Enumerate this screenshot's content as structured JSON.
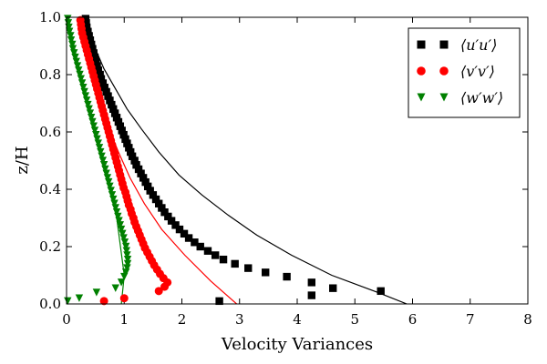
{
  "chart_data": {
    "type": "scatter",
    "xlabel": "Velocity Variances",
    "ylabel": "z/H",
    "xlim": [
      0,
      8
    ],
    "ylim": [
      0,
      1
    ],
    "x_ticks": [
      "0",
      "1",
      "2",
      "3",
      "4",
      "5",
      "6",
      "7",
      "8"
    ],
    "y_ticks": [
      "0.0",
      "0.2",
      "0.4",
      "0.6",
      "0.8",
      "1.0"
    ],
    "grid": false,
    "legend_position": "top-right",
    "series": [
      {
        "name": "⟨u′u′⟩",
        "color": "#000000",
        "marker": "square",
        "points": [
          [
            2.65,
            0.01
          ],
          [
            4.25,
            0.03
          ],
          [
            5.45,
            0.045
          ],
          [
            4.62,
            0.055
          ],
          [
            4.25,
            0.075
          ],
          [
            3.82,
            0.095
          ],
          [
            3.45,
            0.11
          ],
          [
            3.15,
            0.125
          ],
          [
            2.92,
            0.14
          ],
          [
            2.72,
            0.155
          ],
          [
            2.58,
            0.17
          ],
          [
            2.45,
            0.185
          ],
          [
            2.32,
            0.2
          ],
          [
            2.22,
            0.215
          ],
          [
            2.12,
            0.23
          ],
          [
            2.04,
            0.245
          ],
          [
            1.96,
            0.26
          ],
          [
            1.89,
            0.275
          ],
          [
            1.82,
            0.29
          ],
          [
            1.76,
            0.305
          ],
          [
            1.7,
            0.32
          ],
          [
            1.65,
            0.335
          ],
          [
            1.6,
            0.35
          ],
          [
            1.55,
            0.365
          ],
          [
            1.5,
            0.38
          ],
          [
            1.45,
            0.395
          ],
          [
            1.41,
            0.41
          ],
          [
            1.37,
            0.425
          ],
          [
            1.33,
            0.44
          ],
          [
            1.29,
            0.455
          ],
          [
            1.25,
            0.47
          ],
          [
            1.21,
            0.485
          ],
          [
            1.18,
            0.5
          ],
          [
            1.14,
            0.515
          ],
          [
            1.11,
            0.53
          ],
          [
            1.08,
            0.545
          ],
          [
            1.05,
            0.56
          ],
          [
            1.02,
            0.575
          ],
          [
            0.99,
            0.59
          ],
          [
            0.96,
            0.605
          ],
          [
            0.93,
            0.62
          ],
          [
            0.9,
            0.635
          ],
          [
            0.87,
            0.65
          ],
          [
            0.84,
            0.665
          ],
          [
            0.81,
            0.68
          ],
          [
            0.78,
            0.695
          ],
          [
            0.75,
            0.71
          ],
          [
            0.72,
            0.725
          ],
          [
            0.69,
            0.74
          ],
          [
            0.66,
            0.755
          ],
          [
            0.63,
            0.77
          ],
          [
            0.6,
            0.785
          ],
          [
            0.58,
            0.8
          ],
          [
            0.55,
            0.815
          ],
          [
            0.53,
            0.83
          ],
          [
            0.51,
            0.845
          ],
          [
            0.49,
            0.86
          ],
          [
            0.47,
            0.875
          ],
          [
            0.45,
            0.89
          ],
          [
            0.43,
            0.905
          ],
          [
            0.41,
            0.92
          ],
          [
            0.39,
            0.935
          ],
          [
            0.37,
            0.95
          ],
          [
            0.35,
            0.965
          ],
          [
            0.34,
            0.98
          ],
          [
            0.33,
            0.995
          ]
        ],
        "fit_curve": [
          [
            5.9,
            0.0
          ],
          [
            5.4,
            0.04
          ],
          [
            4.6,
            0.1
          ],
          [
            3.9,
            0.17
          ],
          [
            3.3,
            0.24
          ],
          [
            2.8,
            0.31
          ],
          [
            2.35,
            0.38
          ],
          [
            1.95,
            0.45
          ],
          [
            1.6,
            0.53
          ],
          [
            1.3,
            0.61
          ],
          [
            1.05,
            0.68
          ],
          [
            0.85,
            0.75
          ],
          [
            0.65,
            0.82
          ],
          [
            0.5,
            0.89
          ],
          [
            0.38,
            0.95
          ],
          [
            0.3,
            1.0
          ]
        ]
      },
      {
        "name": "⟨v′v′⟩",
        "color": "#ff0000",
        "marker": "circle",
        "points": [
          [
            0.65,
            0.01
          ],
          [
            1.0,
            0.02
          ],
          [
            1.6,
            0.045
          ],
          [
            1.7,
            0.06
          ],
          [
            1.75,
            0.075
          ],
          [
            1.68,
            0.09
          ],
          [
            1.62,
            0.105
          ],
          [
            1.57,
            0.12
          ],
          [
            1.52,
            0.135
          ],
          [
            1.48,
            0.15
          ],
          [
            1.44,
            0.165
          ],
          [
            1.4,
            0.18
          ],
          [
            1.36,
            0.195
          ],
          [
            1.33,
            0.21
          ],
          [
            1.3,
            0.225
          ],
          [
            1.27,
            0.24
          ],
          [
            1.24,
            0.255
          ],
          [
            1.21,
            0.27
          ],
          [
            1.18,
            0.285
          ],
          [
            1.16,
            0.3
          ],
          [
            1.13,
            0.315
          ],
          [
            1.11,
            0.33
          ],
          [
            1.08,
            0.345
          ],
          [
            1.06,
            0.36
          ],
          [
            1.04,
            0.375
          ],
          [
            1.02,
            0.39
          ],
          [
            0.99,
            0.405
          ],
          [
            0.97,
            0.42
          ],
          [
            0.95,
            0.435
          ],
          [
            0.93,
            0.45
          ],
          [
            0.91,
            0.465
          ],
          [
            0.89,
            0.48
          ],
          [
            0.87,
            0.495
          ],
          [
            0.85,
            0.51
          ],
          [
            0.83,
            0.525
          ],
          [
            0.81,
            0.54
          ],
          [
            0.79,
            0.555
          ],
          [
            0.77,
            0.57
          ],
          [
            0.75,
            0.585
          ],
          [
            0.73,
            0.6
          ],
          [
            0.71,
            0.615
          ],
          [
            0.69,
            0.63
          ],
          [
            0.67,
            0.645
          ],
          [
            0.65,
            0.66
          ],
          [
            0.63,
            0.675
          ],
          [
            0.61,
            0.69
          ],
          [
            0.59,
            0.705
          ],
          [
            0.57,
            0.72
          ],
          [
            0.55,
            0.735
          ],
          [
            0.53,
            0.75
          ],
          [
            0.51,
            0.765
          ],
          [
            0.49,
            0.78
          ],
          [
            0.47,
            0.795
          ],
          [
            0.45,
            0.81
          ],
          [
            0.43,
            0.825
          ],
          [
            0.41,
            0.84
          ],
          [
            0.39,
            0.855
          ],
          [
            0.37,
            0.87
          ],
          [
            0.35,
            0.885
          ],
          [
            0.33,
            0.9
          ],
          [
            0.31,
            0.915
          ],
          [
            0.29,
            0.93
          ],
          [
            0.27,
            0.945
          ],
          [
            0.26,
            0.96
          ],
          [
            0.25,
            0.975
          ],
          [
            0.24,
            0.99
          ]
        ],
        "fit_curve": [
          [
            2.95,
            0.0
          ],
          [
            2.5,
            0.08
          ],
          [
            2.05,
            0.17
          ],
          [
            1.65,
            0.26
          ],
          [
            1.35,
            0.35
          ],
          [
            1.1,
            0.44
          ],
          [
            0.9,
            0.53
          ],
          [
            0.72,
            0.62
          ],
          [
            0.57,
            0.71
          ],
          [
            0.44,
            0.8
          ],
          [
            0.33,
            0.89
          ],
          [
            0.24,
            0.97
          ],
          [
            0.2,
            1.0
          ]
        ]
      },
      {
        "name": "⟨w′w′⟩",
        "color": "#008000",
        "marker": "triangle-down",
        "points": [
          [
            0.02,
            0.01
          ],
          [
            0.22,
            0.02
          ],
          [
            0.52,
            0.04
          ],
          [
            0.85,
            0.055
          ],
          [
            0.95,
            0.075
          ],
          [
            1.0,
            0.095
          ],
          [
            1.03,
            0.11
          ],
          [
            1.05,
            0.125
          ],
          [
            1.06,
            0.14
          ],
          [
            1.06,
            0.155
          ],
          [
            1.05,
            0.17
          ],
          [
            1.04,
            0.185
          ],
          [
            1.03,
            0.2
          ],
          [
            1.01,
            0.215
          ],
          [
            0.99,
            0.23
          ],
          [
            0.97,
            0.245
          ],
          [
            0.95,
            0.26
          ],
          [
            0.93,
            0.275
          ],
          [
            0.91,
            0.29
          ],
          [
            0.89,
            0.305
          ],
          [
            0.87,
            0.32
          ],
          [
            0.85,
            0.335
          ],
          [
            0.83,
            0.35
          ],
          [
            0.81,
            0.365
          ],
          [
            0.79,
            0.38
          ],
          [
            0.77,
            0.395
          ],
          [
            0.75,
            0.41
          ],
          [
            0.73,
            0.425
          ],
          [
            0.71,
            0.44
          ],
          [
            0.69,
            0.455
          ],
          [
            0.67,
            0.47
          ],
          [
            0.65,
            0.485
          ],
          [
            0.63,
            0.5
          ],
          [
            0.61,
            0.515
          ],
          [
            0.59,
            0.53
          ],
          [
            0.57,
            0.545
          ],
          [
            0.55,
            0.56
          ],
          [
            0.53,
            0.575
          ],
          [
            0.51,
            0.59
          ],
          [
            0.49,
            0.605
          ],
          [
            0.47,
            0.62
          ],
          [
            0.45,
            0.635
          ],
          [
            0.43,
            0.65
          ],
          [
            0.41,
            0.665
          ],
          [
            0.39,
            0.68
          ],
          [
            0.37,
            0.695
          ],
          [
            0.35,
            0.71
          ],
          [
            0.33,
            0.725
          ],
          [
            0.31,
            0.74
          ],
          [
            0.29,
            0.755
          ],
          [
            0.27,
            0.77
          ],
          [
            0.25,
            0.785
          ],
          [
            0.23,
            0.8
          ],
          [
            0.21,
            0.815
          ],
          [
            0.19,
            0.83
          ],
          [
            0.17,
            0.845
          ],
          [
            0.15,
            0.86
          ],
          [
            0.13,
            0.875
          ],
          [
            0.11,
            0.89
          ],
          [
            0.1,
            0.905
          ],
          [
            0.08,
            0.92
          ],
          [
            0.07,
            0.935
          ],
          [
            0.05,
            0.95
          ],
          [
            0.04,
            0.965
          ],
          [
            0.03,
            0.98
          ],
          [
            0.02,
            0.995
          ]
        ],
        "fit_curve": [
          [
            0.95,
            0.0
          ],
          [
            1.0,
            0.1
          ],
          [
            0.87,
            0.3
          ],
          [
            0.7,
            0.45
          ],
          [
            0.5,
            0.6
          ],
          [
            0.3,
            0.75
          ],
          [
            0.15,
            0.88
          ],
          [
            0.05,
            0.97
          ],
          [
            0.02,
            1.0
          ]
        ]
      }
    ]
  }
}
